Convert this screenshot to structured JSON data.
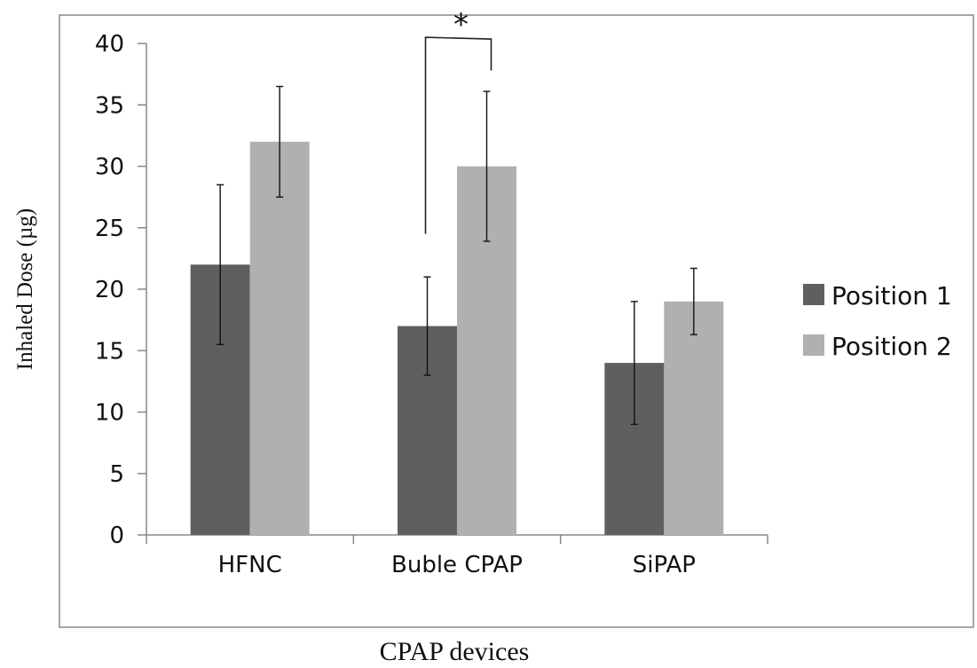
{
  "chart_data": {
    "type": "bar",
    "xlabel": "CPAP devices",
    "ylabel": "Inhaled Dose (µg)",
    "ylim": [
      0,
      40
    ],
    "yticks": [
      0,
      5,
      10,
      15,
      20,
      25,
      30,
      35,
      40
    ],
    "categories": [
      "HFNC",
      "Buble CPAP",
      "SiPAP"
    ],
    "series": [
      {
        "name": "Position 1",
        "color": "#5f5f5f",
        "values": [
          22,
          17,
          14
        ],
        "error": [
          6.5,
          4,
          5
        ]
      },
      {
        "name": "Position 2",
        "color": "#b0b0b0",
        "values": [
          32,
          30,
          19
        ],
        "error": [
          4.5,
          6.1,
          2.7
        ]
      }
    ],
    "annotation": {
      "text": "*",
      "between": [
        "Buble CPAP/Position 1",
        "Buble CPAP/Position 2"
      ]
    },
    "legend": "right",
    "grid": false
  }
}
